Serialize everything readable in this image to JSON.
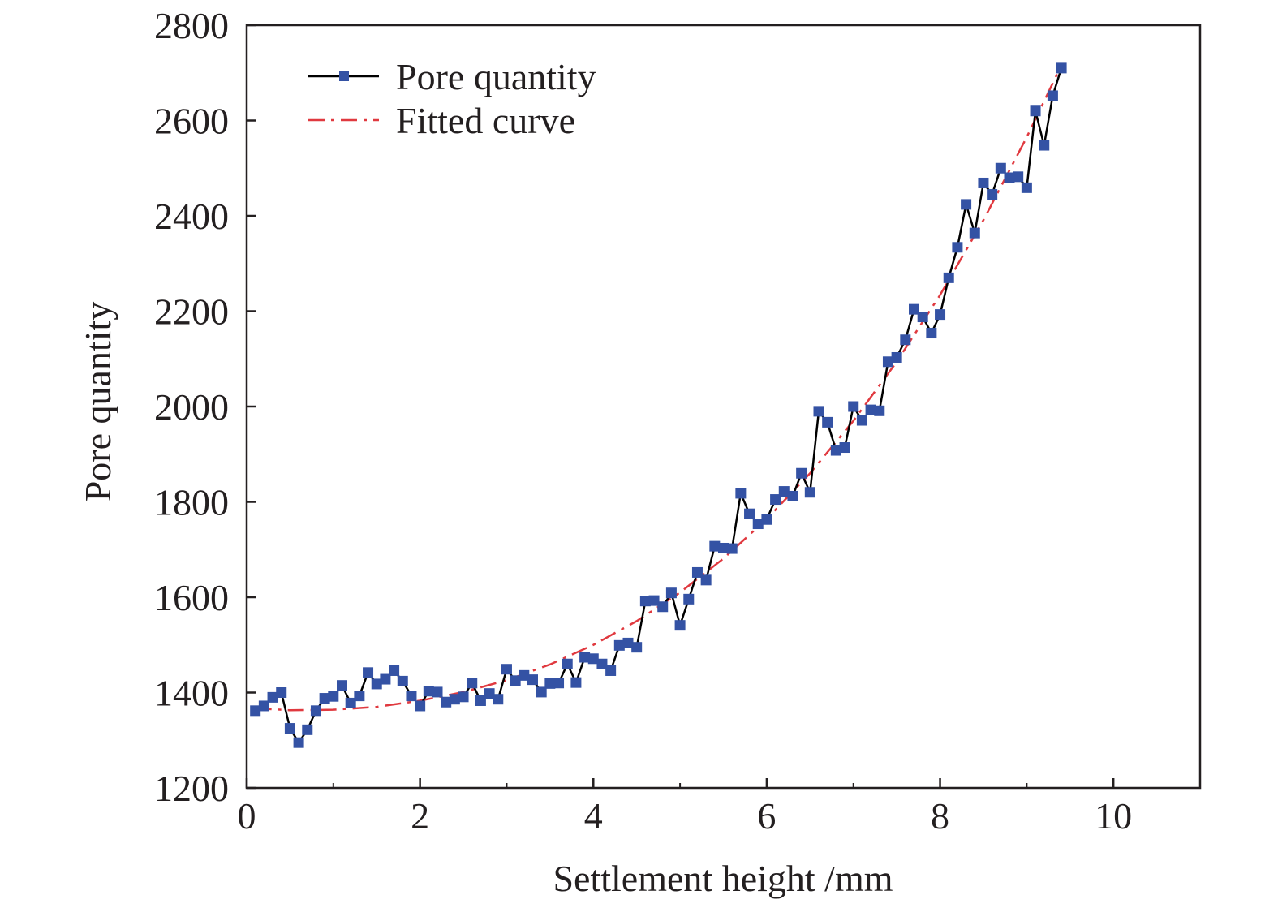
{
  "chart_data": {
    "type": "line",
    "title": "",
    "xlabel": "Settlement height /mm",
    "ylabel": "Pore quantity",
    "xlim": [
      0,
      11
    ],
    "ylim": [
      1200,
      2800
    ],
    "xticks": [
      "0",
      "2",
      "4",
      "6",
      "8",
      "10"
    ],
    "xtick_values": [
      0,
      2,
      4,
      6,
      8,
      10
    ],
    "yticks": [
      "1200",
      "1400",
      "1600",
      "1800",
      "2000",
      "2200",
      "2400",
      "2600",
      "2800"
    ],
    "ytick_values": [
      1200,
      1400,
      1600,
      1800,
      2000,
      2200,
      2400,
      2600,
      2800
    ],
    "legend_position": "top-left",
    "grid": false,
    "series": [
      {
        "name": "Pore quantity",
        "style": "solid line with square markers",
        "line_color": "#000000",
        "marker_color": "#3452a4",
        "x": [
          0.1,
          0.2,
          0.3,
          0.4,
          0.5,
          0.6,
          0.7,
          0.8,
          0.9,
          1.0,
          1.1,
          1.2,
          1.3,
          1.4,
          1.5,
          1.6,
          1.7,
          1.8,
          1.9,
          2.0,
          2.1,
          2.2,
          2.3,
          2.4,
          2.5,
          2.6,
          2.7,
          2.8,
          2.9,
          3.0,
          3.1,
          3.2,
          3.3,
          3.4,
          3.5,
          3.6,
          3.7,
          3.8,
          3.9,
          4.0,
          4.1,
          4.2,
          4.3,
          4.4,
          4.5,
          4.6,
          4.7,
          4.8,
          4.9,
          5.0,
          5.1,
          5.2,
          5.3,
          5.4,
          5.5,
          5.6,
          5.7,
          5.8,
          5.9,
          6.0,
          6.1,
          6.2,
          6.3,
          6.4,
          6.5,
          6.6,
          6.7,
          6.8,
          6.9,
          7.0,
          7.1,
          7.2,
          7.3,
          7.4,
          7.5,
          7.6,
          7.7,
          7.8,
          7.9,
          8.0,
          8.1,
          8.2,
          8.3,
          8.4,
          8.5,
          8.6,
          8.7,
          8.8,
          8.9,
          9.0,
          9.1,
          9.2,
          9.3,
          9.4
        ],
        "y": [
          1362,
          1372,
          1390,
          1400,
          1325,
          1295,
          1322,
          1362,
          1388,
          1392,
          1415,
          1378,
          1393,
          1442,
          1418,
          1428,
          1446,
          1424,
          1393,
          1372,
          1403,
          1401,
          1380,
          1386,
          1391,
          1420,
          1383,
          1398,
          1386,
          1449,
          1425,
          1436,
          1427,
          1401,
          1419,
          1420,
          1460,
          1421,
          1474,
          1471,
          1460,
          1446,
          1499,
          1504,
          1495,
          1592,
          1593,
          1580,
          1609,
          1541,
          1596,
          1652,
          1636,
          1707,
          1703,
          1702,
          1818,
          1775,
          1754,
          1763,
          1805,
          1822,
          1812,
          1860,
          1820,
          1990,
          1967,
          1908,
          1914,
          2000,
          1971,
          1993,
          1991,
          2094,
          2103,
          2140,
          2204,
          2188,
          2154,
          2193,
          2270,
          2334,
          2424,
          2364,
          2469,
          2445,
          2500,
          2480,
          2482,
          2459,
          2620,
          2548,
          2652,
          2710
        ]
      },
      {
        "name": "Fitted curve",
        "style": "dash-dot line",
        "line_color": "#e0393f",
        "x": [
          0.1,
          0.5,
          1.0,
          1.5,
          2.0,
          2.5,
          3.0,
          3.5,
          4.0,
          4.5,
          5.0,
          5.5,
          6.0,
          6.5,
          7.0,
          7.5,
          8.0,
          8.5,
          9.0,
          9.4
        ],
        "y": [
          1367,
          1363,
          1364,
          1370,
          1383,
          1401,
          1426,
          1459,
          1500,
          1550,
          1610,
          1681,
          1764,
          1860,
          1970,
          2094,
          2234,
          2391,
          2565,
          2716
        ]
      }
    ]
  }
}
